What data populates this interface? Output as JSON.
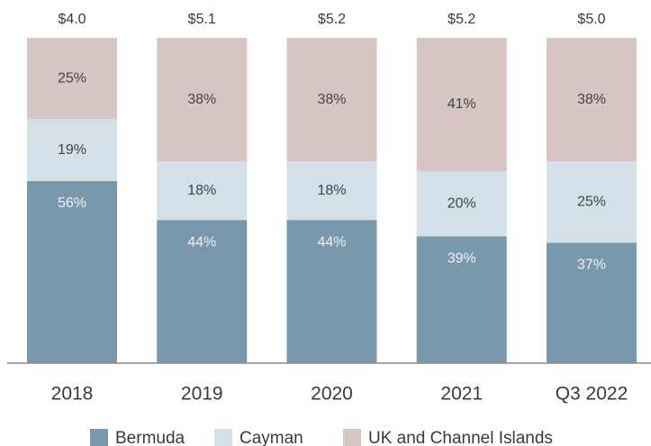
{
  "chart_data": {
    "type": "stacked_bar",
    "categories": [
      "2018",
      "2019",
      "2020",
      "2021",
      "Q3 2022"
    ],
    "series": [
      {
        "name": "Bermuda",
        "color": "#7a98ab",
        "values": [
          56,
          44,
          44,
          39,
          37
        ],
        "value_labels": [
          "56%",
          "44%",
          "44%",
          "39%",
          "37%"
        ]
      },
      {
        "name": "Cayman",
        "color": "#d3e0e7",
        "values": [
          19,
          18,
          18,
          20,
          25
        ],
        "value_labels": [
          "19%",
          "18%",
          "18%",
          "20%",
          "25%"
        ]
      },
      {
        "name": "UK and Channel Islands",
        "color": "#d6c6c4",
        "values": [
          25,
          38,
          38,
          41,
          38
        ],
        "value_labels": [
          "25%",
          "38%",
          "38%",
          "41%",
          "38%"
        ]
      }
    ],
    "totals": {
      "values": [
        4.0,
        5.1,
        5.2,
        5.2,
        5.0
      ],
      "value_labels": [
        "$4.0",
        "$5.1",
        "$5.2",
        "$5.2",
        "$5.0"
      ]
    },
    "ylim": [
      0,
      100
    ],
    "legend": "bottom"
  }
}
